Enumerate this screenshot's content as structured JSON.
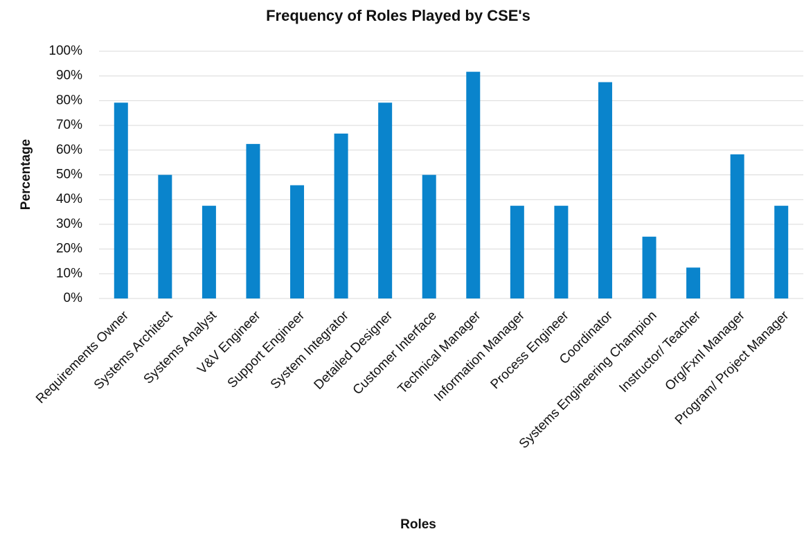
{
  "chart_data": {
    "type": "bar",
    "title": "Frequency of Roles Played by CSE's",
    "x_label": "Roles",
    "y_label": "Percentage",
    "categories": [
      "Requirements Owner",
      "Systems Architect",
      "Systems Analyst",
      "V&V Engineer",
      "Support Engineer",
      "System Integrator",
      "Detailed Designer",
      "Customer Interface",
      "Technical Manager",
      "Information Manager",
      "Process Engineer",
      "Coordinator",
      "Systems Engineering Champion",
      "Instructor/ Teacher",
      "Org/Fxnl Manager",
      "Program/ Project Manager"
    ],
    "values": [
      79.2,
      50,
      37.5,
      62.5,
      45.8,
      66.7,
      79.2,
      50,
      91.7,
      37.5,
      37.5,
      87.5,
      25,
      12.5,
      58.3,
      37.5
    ],
    "color": "#0a84cc",
    "ylim": [
      0,
      100
    ],
    "yticks": [
      {
        "value": 0,
        "label": "0%"
      },
      {
        "value": 10,
        "label": "10%"
      },
      {
        "value": 20,
        "label": "20%"
      },
      {
        "value": 30,
        "label": "30%"
      },
      {
        "value": 40,
        "label": "40%"
      },
      {
        "value": 50,
        "label": "50%"
      },
      {
        "value": 60,
        "label": "60%"
      },
      {
        "value": 70,
        "label": "70%"
      },
      {
        "value": 80,
        "label": "80%"
      },
      {
        "value": 90,
        "label": "90%"
      },
      {
        "value": 100,
        "label": "100%"
      }
    ],
    "grid": true
  }
}
